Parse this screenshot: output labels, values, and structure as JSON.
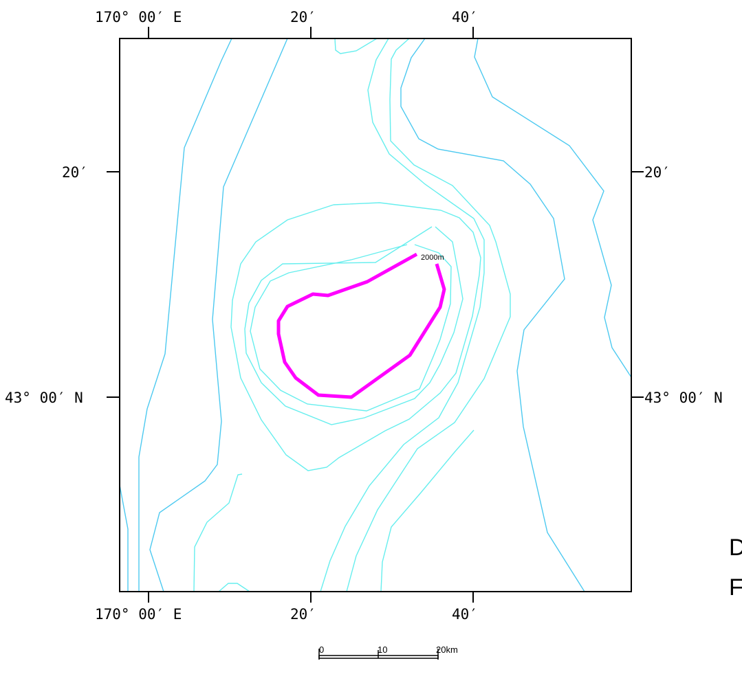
{
  "axes": {
    "top_ticks": [
      "170° 00′ E",
      "20′",
      "40′"
    ],
    "bottom_ticks": [
      "170° 00′ E",
      "20′",
      "40′"
    ],
    "left_ticks": [
      "20′",
      "43° 00′ N"
    ],
    "right_ticks": [
      "20′",
      "43° 00′ N"
    ]
  },
  "contour_label": "2000m",
  "scale_bar": {
    "labels": [
      "0",
      "10",
      "20km"
    ]
  },
  "cutoff_text": [
    "D",
    "F"
  ],
  "colors": {
    "frame": "#000000",
    "contour_blue": "#4cc9f0",
    "contour_cyan": "#66eeee",
    "highlight_contour": "#ff00ff"
  }
}
